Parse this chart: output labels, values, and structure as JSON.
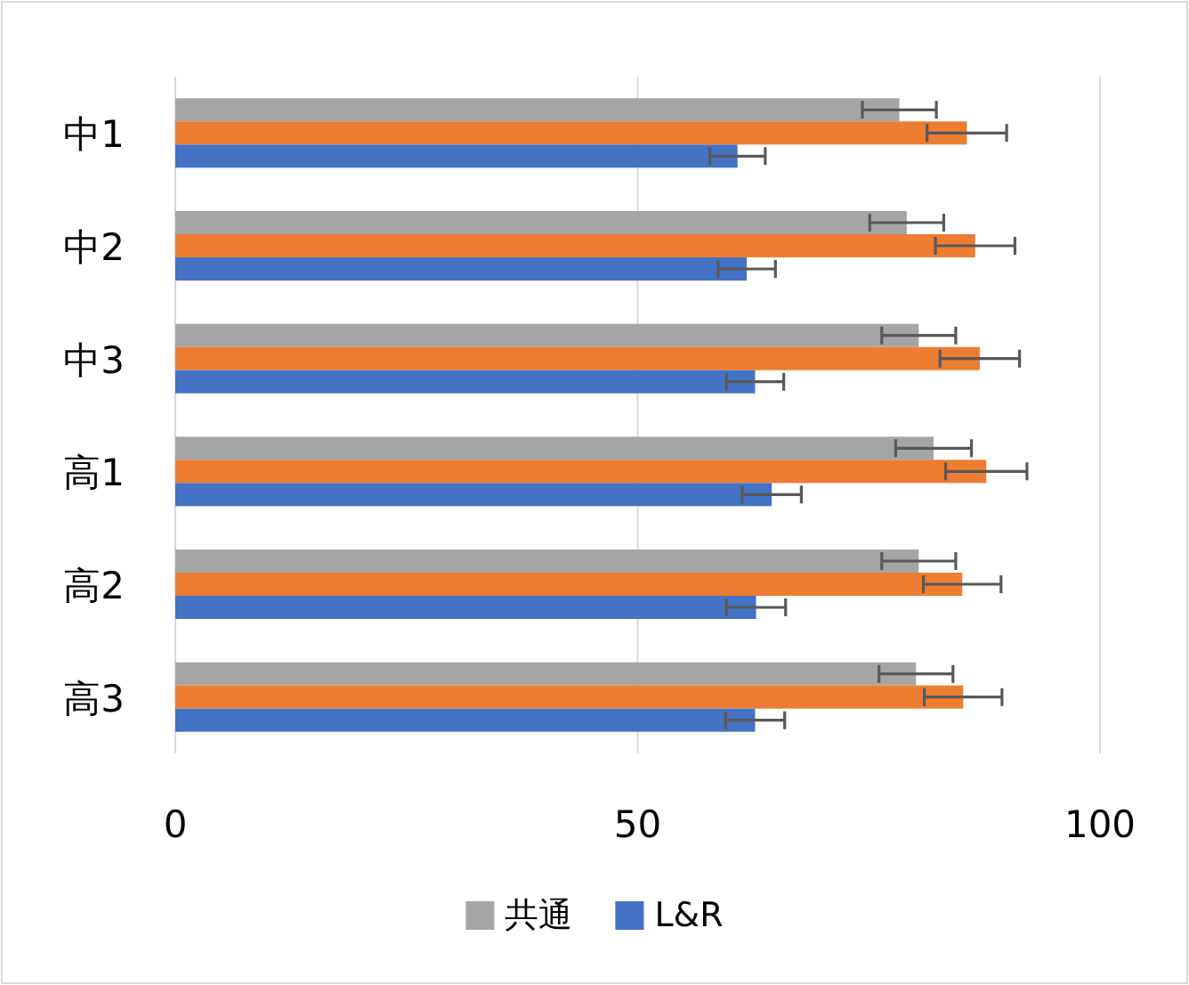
{
  "chart_data": {
    "type": "bar",
    "orientation": "horizontal",
    "categories": [
      "中1",
      "中2",
      "中3",
      "高1",
      "高2",
      "高3"
    ],
    "series": [
      {
        "name": "共通",
        "color": "#a5a5a5",
        "values": [
          78.3,
          79.1,
          80.4,
          82.0,
          80.4,
          80.1
        ],
        "errors": [
          4.0,
          4.0,
          4.0,
          4.1,
          4.0,
          4.0
        ]
      },
      {
        "color": "#ed7d31",
        "values": [
          85.6,
          86.5,
          87.0,
          87.7,
          85.1,
          85.2
        ],
        "errors": [
          4.3,
          4.3,
          4.3,
          4.4,
          4.2,
          4.2
        ]
      },
      {
        "name": "L&R",
        "color": "#4472c4",
        "values": [
          60.8,
          61.8,
          62.7,
          64.5,
          62.8,
          62.7
        ],
        "errors": [
          3.0,
          3.1,
          3.1,
          3.2,
          3.2,
          3.2
        ]
      }
    ],
    "xlim": [
      0,
      100
    ],
    "xticks": [
      0,
      50,
      100
    ],
    "grid": "x",
    "legend": "bottom"
  }
}
